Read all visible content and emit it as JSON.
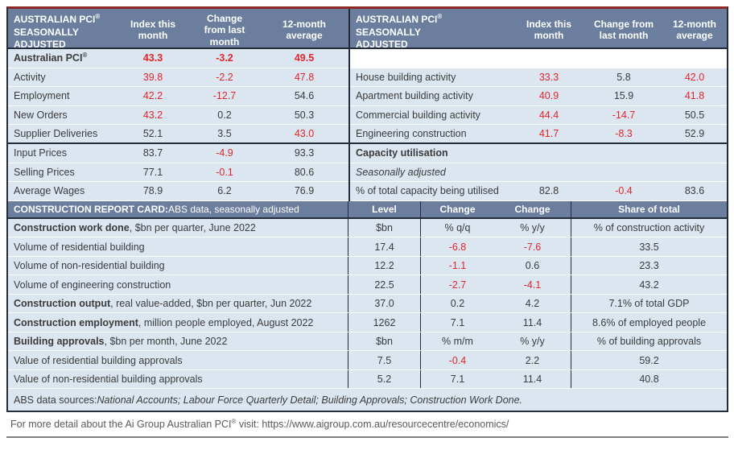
{
  "colors": {
    "header_bg": "#6b7e9d",
    "row_bg": "#dce6f1",
    "negative_red": "#e0262b",
    "border_dark": "#232c3a",
    "border_top_red": "#8e2a26",
    "body_text": "#3b3b3b",
    "footer_text": "#595959",
    "footer_rule": "#808080"
  },
  "pci_left": {
    "title_line1": "AUSTRALIAN PCI",
    "title_sup": "®",
    "title_line2": "SEASONALLY",
    "title_line3": "ADJUSTED",
    "columns": [
      "Index this month",
      "Change from last month",
      "12-month average"
    ],
    "rows": [
      {
        "label": "Australian PCI",
        "label_sup": "®",
        "values": [
          "43.3",
          "-3.2",
          "49.5"
        ]
      },
      {
        "label": "Activity",
        "values": [
          "39.8",
          "-2.2",
          "47.8"
        ]
      },
      {
        "label": "Employment",
        "values": [
          "42.2",
          "-12.7",
          "54.6"
        ]
      },
      {
        "label": "New Orders",
        "values": [
          "43.2",
          "0.2",
          "50.3"
        ]
      },
      {
        "label": "Supplier Deliveries",
        "values": [
          "52.1",
          "3.5",
          "43.0"
        ]
      },
      {
        "label": "Input Prices",
        "values": [
          "83.7",
          "-4.9",
          "93.3"
        ]
      },
      {
        "label": "Selling Prices",
        "values": [
          "77.1",
          "-0.1",
          "80.6"
        ]
      },
      {
        "label": "Average Wages",
        "values": [
          "78.9",
          "6.2",
          "76.9"
        ]
      }
    ]
  },
  "pci_right": {
    "title_line1": "AUSTRALIAN PCI",
    "title_sup": "®",
    "title_line2": "SEASONALLY",
    "title_line3": "ADJUSTED",
    "columns": [
      "Index this month",
      "Change from last month",
      "12-month average"
    ],
    "rows": [
      {
        "label": "House building activity",
        "values": [
          "33.3",
          "5.8",
          "42.0"
        ]
      },
      {
        "label": "Apartment building activity",
        "values": [
          "40.9",
          "15.9",
          "41.8"
        ]
      },
      {
        "label": "Commercial building activity",
        "values": [
          "44.4",
          "-14.7",
          "50.5"
        ]
      },
      {
        "label": "Engineering construction",
        "values": [
          "41.7",
          "-8.3",
          "52.9"
        ]
      },
      {
        "label": "Capacity utilisation",
        "values": [
          "",
          "",
          ""
        ]
      },
      {
        "label": "Seasonally adjusted",
        "values": [
          "",
          "",
          ""
        ]
      },
      {
        "label": "% of total capacity being utilised",
        "values": [
          "82.8",
          "-0.4",
          "83.6"
        ]
      }
    ]
  },
  "report_card": {
    "title_bold": "CONSTRUCTION REPORT CARD:",
    "title_rest": " ABS data, seasonally adjusted",
    "columns": [
      "Level",
      "Change",
      "Change",
      "Share of total"
    ],
    "rows": [
      {
        "label_bold": "Construction work done",
        "label_rest": ", $bn per quarter, June 2022",
        "cells": [
          "$bn",
          "% q/q",
          "% y/y",
          "% of construction activity"
        ]
      },
      {
        "label": "Volume of residential building",
        "cells": [
          "17.4",
          "-6.8",
          "-7.6",
          "33.5"
        ]
      },
      {
        "label": "Volume of non-residential building",
        "cells": [
          "12.2",
          "-1.1",
          "0.6",
          "23.3"
        ]
      },
      {
        "label": "Volume of engineering construction",
        "cells": [
          "22.5",
          "-2.7",
          "-4.1",
          "43.2"
        ]
      },
      {
        "label_bold": "Construction output",
        "label_rest": ", real value-added, $bn per quarter, Jun 2022",
        "cells": [
          "37.0",
          "0.2",
          "4.2",
          "7.1% of total GDP"
        ]
      },
      {
        "label_bold": "Construction employment",
        "label_rest": ", million people employed, August 2022",
        "cells": [
          "1262",
          "7.1",
          "11.4",
          "8.6% of employed people"
        ]
      },
      {
        "label_bold": "Building approvals",
        "label_rest": ", $bn per month, June 2022",
        "cells": [
          "$bn",
          "% m/m",
          "% y/y",
          "% of building approvals"
        ]
      },
      {
        "label": "Value of residential building approvals",
        "cells": [
          "7.5",
          "-0.4",
          "2.2",
          "59.2"
        ]
      },
      {
        "label": "Value of non-residential building approvals",
        "cells": [
          "5.2",
          "7.1",
          "11.4",
          "40.8"
        ]
      }
    ],
    "sources_prefix": "ABS data sources: ",
    "sources_italic": "National Accounts; Labour Force Quarterly Detail; Building Approvals; Construction Work Done."
  },
  "footer": {
    "text_before": "For more detail about the Ai Group Australian PCI",
    "sup": "®",
    "text_after": " visit: ",
    "url": "https://www.aigroup.com.au/resourcecentre/economics/"
  }
}
